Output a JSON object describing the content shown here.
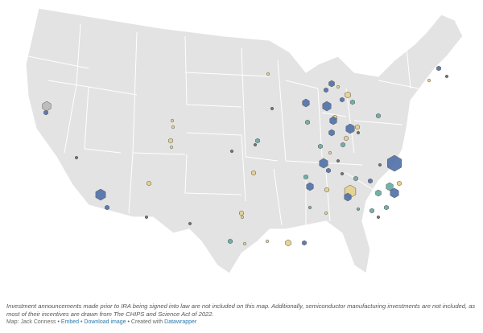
{
  "footer": {
    "note": "Investment announcements made prior to IRA being signed into law are not included on this map. Additionally, semiconductor manufacturing investments are not included, as most of their incentives are drawn from The CHIPS and Science Act of 2022.",
    "credit": "Map: Jack Conness",
    "separator": "•",
    "links": [
      "Embed",
      "Download image"
    ],
    "created_with": "Created with",
    "tool": "Datawrapper"
  }
}
